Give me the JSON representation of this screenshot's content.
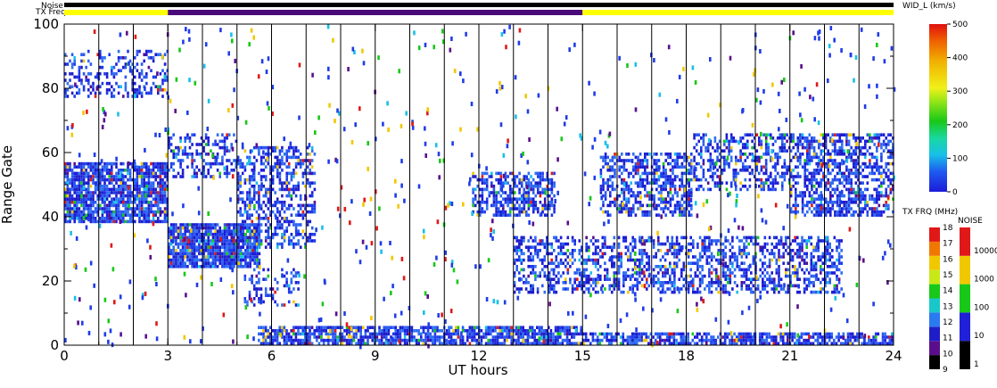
{
  "chart_data": {
    "type": "scatter",
    "panel": "range-time plot",
    "xlabel": "UT hours",
    "ylabel": "Range Gate",
    "xlim": [
      0,
      24
    ],
    "ylim": [
      0,
      100
    ],
    "x_ticks": [
      0,
      3,
      6,
      9,
      12,
      15,
      18,
      21,
      24
    ],
    "y_ticks": [
      0,
      20,
      40,
      60,
      80,
      100
    ],
    "x_tick_labels": [
      "0",
      "3",
      "6",
      "9",
      "12",
      "15",
      "18",
      "21",
      "24"
    ],
    "y_tick_labels": [
      "0",
      "20",
      "40",
      "60",
      "80",
      "100"
    ],
    "vertical_lines_hours": [
      1,
      2,
      3,
      4,
      5,
      6,
      7,
      8,
      9,
      10,
      11,
      12,
      13,
      14,
      15,
      16,
      17,
      18,
      19,
      20,
      21,
      22,
      23
    ],
    "top_bars": {
      "noise_label": "Noise",
      "txfreq_label": "TX Freq",
      "noise_color": "#000000",
      "txfreq_segments": [
        {
          "start": 0,
          "end": 3,
          "color": "#ffff00"
        },
        {
          "start": 3,
          "end": 15,
          "color": "#4b0a7a"
        },
        {
          "start": 15,
          "end": 24,
          "color": "#ffff00"
        }
      ]
    },
    "echo_bands": [
      {
        "t0": 0.0,
        "t1": 3.0,
        "g0": 77,
        "g1": 92,
        "density": 0.35
      },
      {
        "t0": 0.0,
        "t1": 3.0,
        "g0": 38,
        "g1": 57,
        "density": 0.85
      },
      {
        "t0": 3.0,
        "t1": 5.7,
        "g0": 24,
        "g1": 38,
        "density": 0.9
      },
      {
        "t0": 3.0,
        "t1": 5.0,
        "g0": 52,
        "g1": 66,
        "density": 0.35
      },
      {
        "t0": 5.0,
        "t1": 7.3,
        "g0": 30,
        "g1": 62,
        "density": 0.45
      },
      {
        "t0": 5.2,
        "t1": 6.8,
        "g0": 12,
        "g1": 24,
        "density": 0.3
      },
      {
        "t0": 5.6,
        "t1": 15.0,
        "g0": 0,
        "g1": 6,
        "density": 0.75
      },
      {
        "t0": 11.8,
        "t1": 14.2,
        "g0": 40,
        "g1": 54,
        "density": 0.55
      },
      {
        "t0": 13.0,
        "t1": 22.5,
        "g0": 16,
        "g1": 34,
        "density": 0.45
      },
      {
        "t0": 15.0,
        "t1": 24.0,
        "g0": 0,
        "g1": 4,
        "density": 0.7
      },
      {
        "t0": 15.5,
        "t1": 18.2,
        "g0": 40,
        "g1": 60,
        "density": 0.55
      },
      {
        "t0": 18.2,
        "t1": 21.0,
        "g0": 48,
        "g1": 66,
        "density": 0.45
      },
      {
        "t0": 21.0,
        "t1": 24.0,
        "g0": 40,
        "g1": 66,
        "density": 0.55
      }
    ],
    "width_colorbar": {
      "label": "WID_L (km/s)",
      "tick_labels": [
        "0",
        "100",
        "200",
        "300",
        "400",
        "500"
      ],
      "range": [
        0,
        500
      ]
    },
    "txfreq_colorbar": {
      "label": "TX FRQ (MHz)",
      "tick_labels": [
        "9",
        "10",
        "11",
        "12",
        "13",
        "14",
        "15",
        "16",
        "17",
        "18"
      ],
      "colors": [
        "#000000",
        "#5a0e8c",
        "#1e1ec8",
        "#2a7af0",
        "#18c8c8",
        "#18c818",
        "#c8e818",
        "#f0c800",
        "#f07800",
        "#e01818"
      ]
    },
    "noise_colorbar": {
      "label": "NOISE",
      "tick_labels": [
        "1",
        "10",
        "100",
        "1000",
        "10000"
      ],
      "colors": [
        "#000000",
        "#2020d8",
        "#18c818",
        "#f0c800",
        "#e01818"
      ]
    }
  }
}
